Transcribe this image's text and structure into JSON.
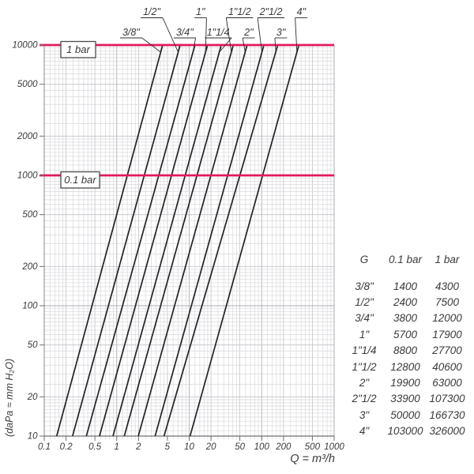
{
  "chart_data": {
    "type": "line",
    "title": "",
    "xlabel": "Q = m³/h",
    "ylabel": "(daPa ≈ mm H₂O)",
    "x_scale": "log",
    "y_scale": "log",
    "xlim": [
      0.1,
      1000
    ],
    "ylim": [
      10,
      10000
    ],
    "x_tick_labels": [
      "0.1",
      "0.2",
      "0.5",
      "1",
      "2",
      "5",
      "10",
      "20",
      "50",
      "100",
      "200",
      "500",
      "1000"
    ],
    "y_tick_labels": [
      "10",
      "20",
      "50",
      "100",
      "200",
      "500",
      "1000",
      "2000",
      "5000",
      "10000"
    ],
    "grid": true,
    "legend_position": "none",
    "colors": {
      "reference_line": "#e2195c",
      "curve": "#232326",
      "grid_minor": "#d8d8dc",
      "grid_mid": "#c2c2c8",
      "grid_major": "#aeaeb4",
      "axis": "#6f6f73",
      "text": "#3a3a3c"
    },
    "reference_lines": [
      {
        "label": "1 bar",
        "value": 10000
      },
      {
        "label": "0.1 bar",
        "value": 1000
      }
    ],
    "curves": [
      {
        "label": "3/8\"",
        "q_at_0_1_bar_m3h": 1.4,
        "q_at_1_bar_m3h": 4.3
      },
      {
        "label": "1/2\"",
        "q_at_0_1_bar_m3h": 2.4,
        "q_at_1_bar_m3h": 7.5
      },
      {
        "label": "3/4\"",
        "q_at_0_1_bar_m3h": 3.8,
        "q_at_1_bar_m3h": 12
      },
      {
        "label": "1\"",
        "q_at_0_1_bar_m3h": 5.7,
        "q_at_1_bar_m3h": 17.9
      },
      {
        "label": "1\"1/4",
        "q_at_0_1_bar_m3h": 8.8,
        "q_at_1_bar_m3h": 27.7
      },
      {
        "label": "1\"1/2",
        "q_at_0_1_bar_m3h": 12.8,
        "q_at_1_bar_m3h": 40.6
      },
      {
        "label": "2\"",
        "q_at_0_1_bar_m3h": 19.9,
        "q_at_1_bar_m3h": 63
      },
      {
        "label": "2\"1/2",
        "q_at_0_1_bar_m3h": 33.9,
        "q_at_1_bar_m3h": 107.3
      },
      {
        "label": "3\"",
        "q_at_0_1_bar_m3h": 50,
        "q_at_1_bar_m3h": 166.73
      },
      {
        "label": "4\"",
        "q_at_0_1_bar_m3h": 103,
        "q_at_1_bar_m3h": 326
      }
    ]
  },
  "table": {
    "headers": [
      "G",
      "0.1 bar",
      "1 bar"
    ],
    "rows": [
      [
        "3/8\"",
        "1400",
        "4300"
      ],
      [
        "1/2\"",
        "2400",
        "7500"
      ],
      [
        "3/4\"",
        "3800",
        "12000"
      ],
      [
        "1\"",
        "5700",
        "17900"
      ],
      [
        "1\"1/4",
        "8800",
        "27700"
      ],
      [
        "1\"1/2",
        "12800",
        "40600"
      ],
      [
        "2\"",
        "19900",
        "63000"
      ],
      [
        "2\"1/2",
        "33900",
        "107300"
      ],
      [
        "3\"",
        "50000",
        "166730"
      ],
      [
        "4\"",
        "103000",
        "326000"
      ]
    ]
  }
}
